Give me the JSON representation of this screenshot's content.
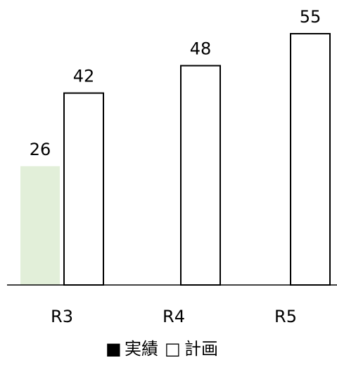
{
  "chart_data": {
    "type": "bar",
    "categories": [
      "R3",
      "R4",
      "R5"
    ],
    "series": [
      {
        "name": "実績",
        "values": [
          26,
          null,
          null
        ],
        "color": "#e2efd9",
        "outline": "none"
      },
      {
        "name": "計画",
        "values": [
          42,
          48,
          55
        ],
        "color": "#ffffff",
        "outline": "#000000"
      }
    ],
    "ylim": [
      0,
      55
    ],
    "grid": false,
    "legend_position": "bottom",
    "legend": [
      {
        "marker": "■",
        "label": "実績",
        "color": "#e2efd9"
      },
      {
        "marker": "□",
        "label": "計画",
        "color": "#000000"
      }
    ]
  }
}
